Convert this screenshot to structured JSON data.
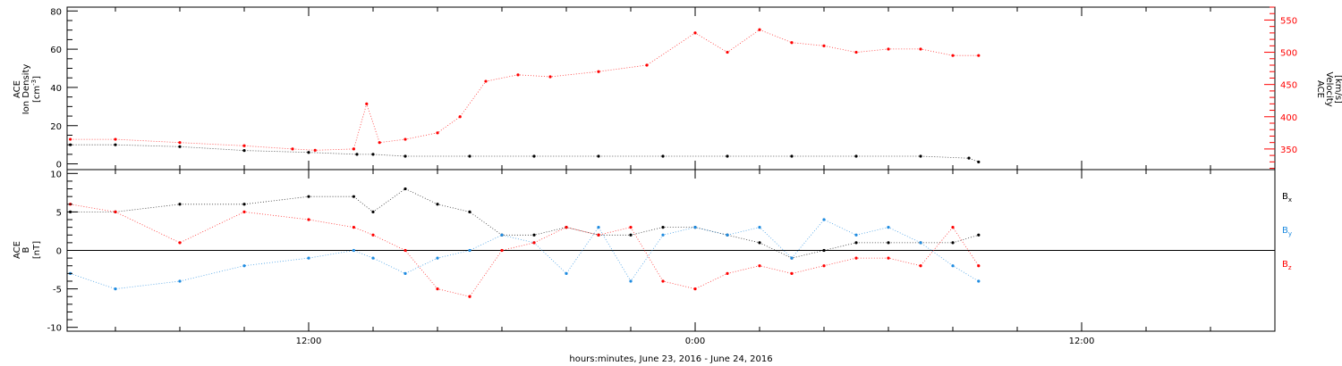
{
  "xaxis": {
    "label": "hours:minutes, June 23, 2016 - June 24, 2016",
    "range_hours": [
      -19.5,
      18
    ],
    "ticks": [
      {
        "label": "12:00",
        "at_hours": -12
      },
      {
        "label": "0:00",
        "at_hours": 0
      },
      {
        "label": "12:00",
        "at_hours": 12
      }
    ]
  },
  "panel1": {
    "left_label_lines": [
      "ACE",
      "Ion Density"
    ],
    "left_unit": "[cm",
    "left_unit_sup": "-3",
    "left_unit_end": "]",
    "right_label_lines": [
      "ACE",
      "Velocity"
    ],
    "right_unit": "[km/s]",
    "right_color": "#ff0000",
    "y_ticks_left": [
      "0",
      "20",
      "40",
      "60",
      "80"
    ],
    "y_ticks_right": [
      "350",
      "400",
      "450",
      "500",
      "550"
    ]
  },
  "panel2": {
    "left_label_lines": [
      "ACE",
      "B"
    ],
    "left_unit": "[nT]",
    "y_ticks": [
      "-10",
      "-5",
      "0",
      "5",
      "10"
    ],
    "legend": [
      {
        "main": "B",
        "sub": "x",
        "color": "#000000"
      },
      {
        "main": "B",
        "sub": "y",
        "color": "#1e8be0"
      },
      {
        "main": "B",
        "sub": "z",
        "color": "#ff0000"
      }
    ]
  },
  "chart_data": [
    {
      "type": "scatter",
      "xlabel": "hours:minutes, June 23, 2016 - June 24, 2016",
      "ylabel": "ACE Ion Density [cm-3]",
      "y2label": "ACE Velocity [km/s]",
      "xlim_hours": [
        -19.5,
        18
      ],
      "ylim": [
        -3,
        82
      ],
      "y2lim": [
        318,
        570
      ],
      "series": [
        {
          "name": "Ion Density",
          "color": "#000000",
          "axis": "left",
          "x": [
            -19.4,
            -18,
            -16,
            -14,
            -12,
            -10.5,
            -10,
            -9,
            -7,
            -5,
            -3,
            -1,
            1,
            3,
            5,
            7,
            8.5,
            8.8
          ],
          "y": [
            10,
            10,
            9,
            7,
            6,
            5,
            5,
            4,
            4,
            4,
            4,
            4,
            4,
            4,
            4,
            4,
            3,
            1
          ]
        },
        {
          "name": "Velocity",
          "color": "#ff0000",
          "axis": "right",
          "x": [
            -19.4,
            -18,
            -16,
            -14,
            -12.5,
            -11.8,
            -10.6,
            -10.2,
            -9.8,
            -9,
            -8,
            -7.3,
            -6.5,
            -5.5,
            -4.5,
            -3,
            -1.5,
            0,
            1,
            2,
            3,
            4,
            5,
            6,
            7,
            8,
            8.8
          ],
          "y": [
            365,
            365,
            360,
            355,
            350,
            348,
            350,
            420,
            360,
            365,
            375,
            400,
            455,
            465,
            462,
            470,
            480,
            530,
            500,
            535,
            515,
            510,
            500,
            505,
            505,
            495,
            495
          ]
        }
      ]
    },
    {
      "type": "scatter",
      "xlabel": "hours:minutes, June 23, 2016 - June 24, 2016",
      "ylabel": "ACE B [nT]",
      "xlim_hours": [
        -19.5,
        18
      ],
      "ylim": [
        -10.5,
        10.5
      ],
      "series": [
        {
          "name": "Bx",
          "color": "#000000",
          "x": [
            -19.4,
            -18,
            -16,
            -14,
            -12,
            -10.6,
            -10,
            -9,
            -8,
            -7,
            -6,
            -5,
            -4,
            -3,
            -2,
            -1,
            0,
            1,
            2,
            3,
            4,
            5,
            6,
            7,
            8,
            8.8
          ],
          "y": [
            5,
            5,
            6,
            6,
            7,
            7,
            5,
            8,
            6,
            5,
            2,
            2,
            3,
            2,
            2,
            3,
            3,
            2,
            1,
            -1,
            0,
            1,
            1,
            1,
            1,
            2
          ]
        },
        {
          "name": "By",
          "color": "#1e8be0",
          "x": [
            -19.4,
            -18,
            -16,
            -14,
            -12,
            -10.6,
            -10,
            -9,
            -8,
            -7,
            -6,
            -5,
            -4,
            -3,
            -2,
            -1,
            0,
            1,
            2,
            3,
            4,
            5,
            6,
            7,
            8,
            8.8
          ],
          "y": [
            -3,
            -5,
            -4,
            -2,
            -1,
            0,
            -1,
            -3,
            -1,
            0,
            2,
            1,
            -3,
            3,
            -4,
            2,
            3,
            2,
            3,
            -1,
            4,
            2,
            3,
            1,
            -2,
            -4
          ]
        },
        {
          "name": "Bz",
          "color": "#ff0000",
          "x": [
            -19.4,
            -18,
            -16,
            -14,
            -12,
            -10.6,
            -10,
            -9,
            -8,
            -7,
            -6,
            -5,
            -4,
            -3,
            -2,
            -1,
            0,
            1,
            2,
            3,
            4,
            5,
            6,
            7,
            8,
            8.8
          ],
          "y": [
            6,
            5,
            1,
            5,
            4,
            3,
            2,
            0,
            -5,
            -6,
            0,
            1,
            3,
            2,
            3,
            -4,
            -5,
            -3,
            -2,
            -3,
            -2,
            -1,
            -1,
            -2,
            3,
            -2
          ]
        }
      ]
    }
  ]
}
